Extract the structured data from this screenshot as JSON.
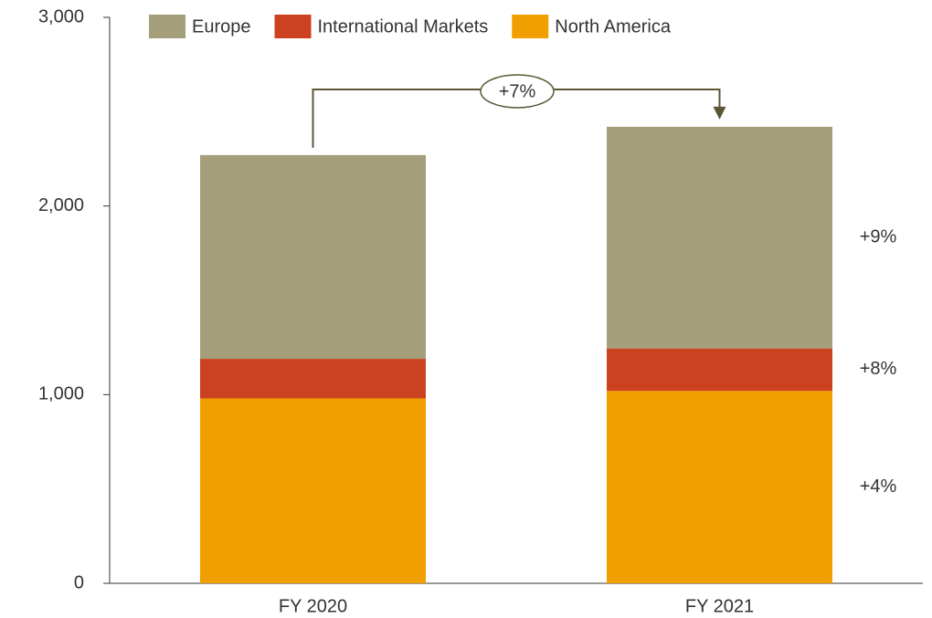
{
  "chart_data": {
    "type": "stacked_bar",
    "categories": [
      "FY 2020",
      "FY 2021"
    ],
    "series": [
      {
        "name": "Europe",
        "color": "#a59e7b",
        "values": [
          1080,
          1175
        ],
        "growth_label": "+9%"
      },
      {
        "name": "International Markets",
        "color": "#cc4220",
        "values": [
          210,
          225
        ],
        "growth_label": "+8%"
      },
      {
        "name": "North America",
        "color": "#f09e00",
        "values": [
          980,
          1020
        ],
        "growth_label": "+4%"
      }
    ],
    "total_growth_label": "+7%",
    "ylim": [
      0,
      3000
    ],
    "yticks": [
      0,
      {
        "value": 1000,
        "label": "1,000"
      },
      {
        "value": 2000,
        "label": "2,000"
      },
      {
        "value": 3000,
        "label": "3,000"
      }
    ]
  }
}
